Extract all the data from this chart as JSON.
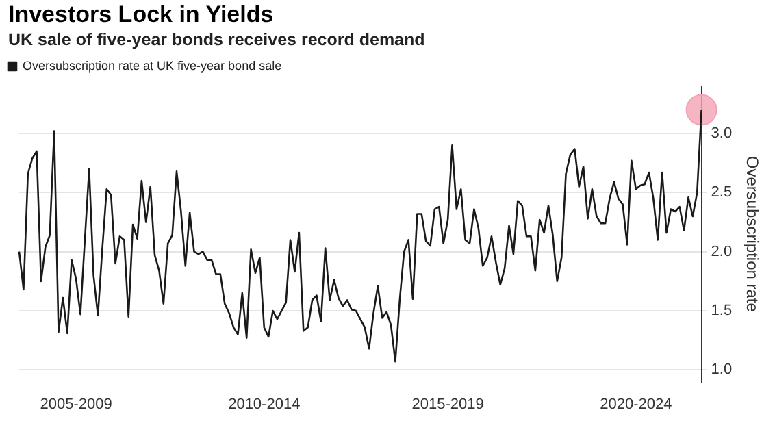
{
  "chart_data": {
    "type": "line",
    "title": "Investors Lock in Yields",
    "subtitle": "UK sale of five-year bonds receives record demand",
    "ylabel": "Oversubscription rate",
    "categories": [
      null,
      null,
      null,
      null,
      null,
      null,
      null,
      null,
      null,
      null,
      null,
      null,
      null,
      "2005-2009",
      null,
      null,
      null,
      null,
      null,
      null,
      null,
      null,
      null,
      null,
      null,
      null,
      null,
      null,
      null,
      null,
      null,
      null,
      null,
      null,
      null,
      null,
      null,
      null,
      null,
      null,
      null,
      null,
      null,
      null,
      null,
      null,
      null,
      null,
      null,
      null,
      null,
      null,
      null,
      null,
      null,
      null,
      "2010-2014",
      null,
      null,
      null,
      null,
      null,
      null,
      null,
      null,
      null,
      null,
      null,
      null,
      null,
      null,
      null,
      null,
      null,
      null,
      null,
      null,
      null,
      null,
      null,
      null,
      null,
      null,
      null,
      null,
      null,
      null,
      null,
      null,
      null,
      null,
      null,
      null,
      null,
      null,
      null,
      null,
      null,
      "2015-2019",
      null,
      null,
      null,
      null,
      null,
      null,
      null,
      null,
      null,
      null,
      null,
      null,
      null,
      null,
      null,
      null,
      null,
      null,
      null,
      null,
      null,
      null,
      null,
      null,
      null,
      null,
      null,
      null,
      null,
      null,
      null,
      null,
      null,
      null,
      null,
      null,
      null,
      null,
      null,
      null,
      null,
      null,
      "2020-2024",
      null,
      null,
      null,
      null,
      null,
      null,
      null,
      null,
      null,
      null,
      null,
      null,
      null,
      null,
      null
    ],
    "series": [
      {
        "name": "Oversubscription rate at UK five-year bond sale",
        "marker": "none",
        "color": "#1a1a1a",
        "values": [
          2.0,
          1.68,
          2.66,
          2.79,
          2.85,
          1.75,
          2.04,
          2.14,
          3.02,
          1.32,
          1.61,
          1.31,
          1.93,
          1.77,
          1.47,
          2.09,
          2.7,
          1.8,
          1.46,
          2.02,
          2.53,
          2.48,
          1.9,
          2.13,
          2.1,
          1.45,
          2.23,
          2.11,
          2.6,
          2.25,
          2.55,
          1.97,
          1.84,
          1.56,
          2.07,
          2.14,
          2.68,
          2.34,
          1.88,
          2.33,
          2.0,
          1.98,
          2.0,
          1.93,
          1.93,
          1.81,
          1.81,
          1.56,
          1.48,
          1.36,
          1.3,
          1.65,
          1.27,
          2.02,
          1.82,
          1.95,
          1.36,
          1.28,
          1.5,
          1.43,
          1.5,
          1.57,
          2.1,
          1.83,
          2.16,
          1.33,
          1.36,
          1.59,
          1.63,
          1.41,
          2.03,
          1.59,
          1.76,
          1.61,
          1.54,
          1.59,
          1.51,
          1.5,
          1.43,
          1.36,
          1.18,
          1.48,
          1.71,
          1.44,
          1.49,
          1.38,
          1.07,
          1.59,
          2.0,
          2.1,
          1.6,
          2.32,
          2.32,
          2.09,
          2.05,
          2.36,
          2.38,
          2.07,
          2.27,
          2.9,
          2.36,
          2.53,
          2.1,
          2.07,
          2.36,
          2.2,
          1.88,
          1.95,
          2.13,
          1.91,
          1.72,
          1.86,
          2.22,
          1.98,
          2.43,
          2.39,
          2.13,
          2.13,
          1.84,
          2.27,
          2.16,
          2.39,
          2.14,
          1.75,
          1.95,
          2.66,
          2.82,
          2.87,
          2.55,
          2.72,
          2.28,
          2.53,
          2.3,
          2.24,
          2.24,
          2.45,
          2.59,
          2.45,
          2.4,
          2.06,
          2.77,
          2.53,
          2.56,
          2.57,
          2.67,
          2.45,
          2.1,
          2.67,
          2.16,
          2.36,
          2.34,
          2.38,
          2.18,
          2.46,
          2.3,
          2.5,
          3.2
        ]
      },
      {
        "type": "scatter",
        "marker": "circle",
        "color": "#f4a3b4",
        "values": [
          null,
          null,
          null,
          null,
          null,
          null,
          null,
          null,
          null,
          null,
          null,
          null,
          null,
          null,
          null,
          null,
          null,
          null,
          null,
          null,
          null,
          null,
          null,
          null,
          null,
          null,
          null,
          null,
          null,
          null,
          null,
          null,
          null,
          null,
          null,
          null,
          null,
          null,
          null,
          null,
          null,
          null,
          null,
          null,
          null,
          null,
          null,
          null,
          null,
          null,
          null,
          null,
          null,
          null,
          null,
          null,
          null,
          null,
          null,
          null,
          null,
          null,
          null,
          null,
          null,
          null,
          null,
          null,
          null,
          null,
          null,
          null,
          null,
          null,
          null,
          null,
          null,
          null,
          null,
          null,
          null,
          null,
          null,
          null,
          null,
          null,
          null,
          null,
          null,
          null,
          null,
          null,
          null,
          null,
          null,
          null,
          null,
          null,
          null,
          null,
          null,
          null,
          null,
          null,
          null,
          null,
          null,
          null,
          null,
          null,
          null,
          null,
          null,
          null,
          null,
          null,
          null,
          null,
          null,
          null,
          null,
          null,
          null,
          null,
          null,
          null,
          null,
          null,
          null,
          null,
          null,
          null,
          null,
          null,
          null,
          null,
          null,
          null,
          null,
          null,
          null,
          null,
          null,
          null,
          null,
          null,
          null,
          null,
          null,
          null,
          null,
          null,
          null,
          null,
          null,
          null,
          3.2
        ]
      }
    ],
    "ylim": [
      0.9,
      3.4
    ],
    "yticks": [
      {
        "value": 1,
        "label": "1.0"
      },
      {
        "value": 1.5,
        "label": "1.5"
      },
      {
        "value": 2,
        "label": "2.0"
      },
      {
        "value": 2.5,
        "label": "2.5"
      },
      {
        "value": 3,
        "label": "3.0"
      }
    ],
    "grid": "y",
    "legend": "top left",
    "line_style": "solid"
  }
}
